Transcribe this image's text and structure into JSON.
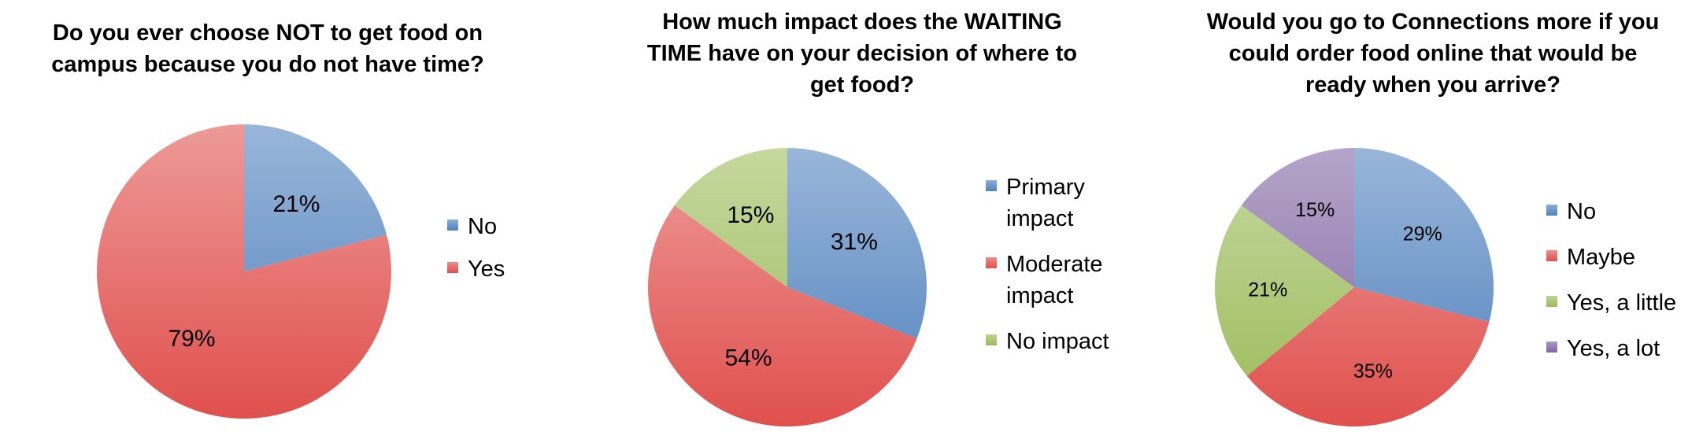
{
  "colors": {
    "blue": "#4f81bd",
    "red": "#e0504d",
    "green": "#9bbb59",
    "purple": "#8064a2"
  },
  "chart_data": [
    {
      "type": "pie",
      "title": "Do you ever choose NOT to get food on campus because you do not have time?",
      "slices": [
        {
          "label": "No",
          "value": 21,
          "display": "21%",
          "color": "blue"
        },
        {
          "label": "Yes",
          "value": 79,
          "display": "79%",
          "color": "red"
        }
      ],
      "legend_position": "right"
    },
    {
      "type": "pie",
      "title": "How much impact does the WAITING TIME have on your decision of where to get food?",
      "slices": [
        {
          "label": "Primary impact",
          "value": 31,
          "display": "31%",
          "color": "blue"
        },
        {
          "label": "Moderate impact",
          "value": 54,
          "display": "54%",
          "color": "red"
        },
        {
          "label": "No impact",
          "value": 15,
          "display": "15%",
          "color": "green"
        }
      ],
      "legend_position": "right"
    },
    {
      "type": "pie",
      "title": "Would you go to Connections more if you could order food online that would be ready when you arrive?",
      "slices": [
        {
          "label": "No",
          "value": 29,
          "display": "29%",
          "color": "blue"
        },
        {
          "label": "Maybe",
          "value": 35,
          "display": "35%",
          "color": "red"
        },
        {
          "label": "Yes, a little",
          "value": 21,
          "display": "21%",
          "color": "green"
        },
        {
          "label": "Yes, a lot",
          "value": 15,
          "display": "15%",
          "color": "purple"
        }
      ],
      "legend_position": "right"
    }
  ]
}
